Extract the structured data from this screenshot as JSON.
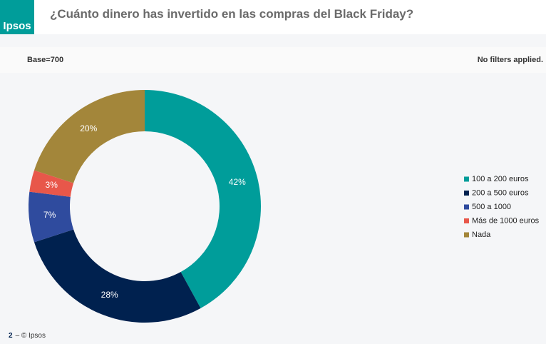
{
  "header": {
    "logo": "Ipsos"
  },
  "base": "Base=700",
  "filters": "No filters applied.",
  "footer": {
    "page": "2",
    "copyright": "– © Ipsos"
  },
  "chart_data": {
    "type": "pie",
    "title": "¿Cuánto dinero has invertido en las compras del Black Friday?",
    "categories": [
      "100 a 200 euros",
      "200 a 500 euros",
      "500 a 1000",
      "Más de 1000 euros",
      "Nada"
    ],
    "values": [
      42,
      28,
      7,
      3,
      20
    ],
    "value_labels": [
      "42%",
      "28%",
      "7%",
      "3%",
      "20%"
    ],
    "colors": [
      "#009d9a",
      "#00214f",
      "#2f4b9e",
      "#e8574a",
      "#a3863a"
    ],
    "legend": "right"
  }
}
